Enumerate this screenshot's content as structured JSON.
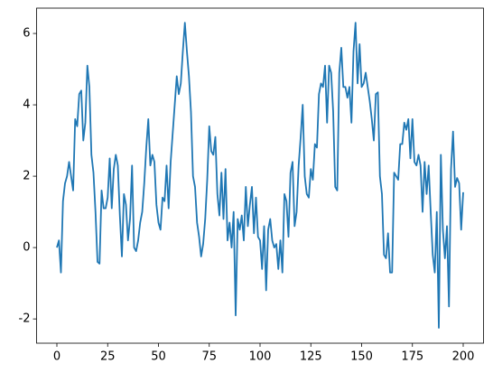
{
  "chart_data": {
    "type": "line",
    "color": "#1f77b4",
    "x": [
      0,
      1,
      2,
      3,
      4,
      5,
      6,
      7,
      8,
      9,
      10,
      11,
      12,
      13,
      14,
      15,
      16,
      17,
      18,
      19,
      20,
      21,
      22,
      23,
      24,
      25,
      26,
      27,
      28,
      29,
      30,
      31,
      32,
      33,
      34,
      35,
      36,
      37,
      38,
      39,
      40,
      41,
      42,
      43,
      44,
      45,
      46,
      47,
      48,
      49,
      50,
      51,
      52,
      53,
      54,
      55,
      56,
      57,
      58,
      59,
      60,
      61,
      62,
      63,
      64,
      65,
      66,
      67,
      68,
      69,
      70,
      71,
      72,
      73,
      74,
      75,
      76,
      77,
      78,
      79,
      80,
      81,
      82,
      83,
      84,
      85,
      86,
      87,
      88,
      89,
      90,
      91,
      92,
      93,
      94,
      95,
      96,
      97,
      98,
      99,
      100,
      101,
      102,
      103,
      104,
      105,
      106,
      107,
      108,
      109,
      110,
      111,
      112,
      113,
      114,
      115,
      116,
      117,
      118,
      119,
      120,
      121,
      122,
      123,
      124,
      125,
      126,
      127,
      128,
      129,
      130,
      131,
      132,
      133,
      134,
      135,
      136,
      137,
      138,
      139,
      140,
      141,
      142,
      143,
      144,
      145,
      146,
      147,
      148,
      149,
      150,
      151,
      152,
      153,
      154,
      155,
      156,
      157,
      158,
      159,
      160,
      161,
      162,
      163,
      164,
      165,
      166,
      167,
      168,
      169,
      170,
      171,
      172,
      173,
      174,
      175,
      176,
      177,
      178,
      179,
      180,
      181,
      182,
      183,
      184,
      185,
      186,
      187,
      188,
      189,
      190,
      191,
      192,
      193,
      194,
      195,
      196,
      197,
      198,
      199,
      200
    ],
    "values": [
      0.0,
      0.2,
      -0.7,
      1.3,
      1.8,
      2.0,
      2.4,
      2.0,
      1.6,
      3.6,
      3.4,
      4.3,
      4.4,
      3.0,
      3.5,
      5.1,
      4.5,
      2.6,
      2.1,
      1.0,
      -0.4,
      -0.45,
      1.6,
      1.1,
      1.1,
      1.4,
      2.5,
      1.1,
      2.2,
      2.6,
      2.3,
      0.9,
      -0.25,
      1.5,
      1.2,
      0.2,
      0.8,
      2.3,
      0.0,
      -0.1,
      0.2,
      0.7,
      1.0,
      1.8,
      2.8,
      3.6,
      2.3,
      2.6,
      2.4,
      1.2,
      0.7,
      0.5,
      1.4,
      1.3,
      2.3,
      1.1,
      2.4,
      3.2,
      4.0,
      4.8,
      4.3,
      4.6,
      5.5,
      6.3,
      5.5,
      4.8,
      3.8,
      2.0,
      1.7,
      0.7,
      0.3,
      -0.25,
      0.1,
      0.8,
      1.9,
      3.4,
      2.7,
      2.6,
      3.1,
      1.5,
      0.9,
      2.1,
      0.8,
      2.2,
      0.2,
      0.7,
      0.0,
      1.0,
      -1.9,
      0.8,
      0.5,
      0.9,
      0.2,
      1.7,
      0.6,
      1.2,
      1.7,
      0.4,
      1.4,
      0.3,
      0.2,
      -0.6,
      0.6,
      -1.2,
      0.5,
      0.8,
      0.2,
      0.0,
      0.1,
      -0.6,
      0.2,
      -0.7,
      1.5,
      1.3,
      0.3,
      2.1,
      2.4,
      0.6,
      1.0,
      2.3,
      3.1,
      4.0,
      2.0,
      1.5,
      1.4,
      2.2,
      1.9,
      2.9,
      2.8,
      4.3,
      4.6,
      4.5,
      5.1,
      3.5,
      5.1,
      4.9,
      3.8,
      1.7,
      1.6,
      4.9,
      5.6,
      4.5,
      4.5,
      4.2,
      4.5,
      3.5,
      5.5,
      6.3,
      4.6,
      5.7,
      4.5,
      4.6,
      4.9,
      4.5,
      4.1,
      3.6,
      3.0,
      4.3,
      4.35,
      2.0,
      1.5,
      -0.2,
      -0.3,
      0.4,
      -0.7,
      -0.7,
      2.1,
      2.0,
      1.9,
      2.9,
      2.9,
      3.5,
      3.3,
      3.6,
      2.5,
      3.6,
      2.4,
      2.3,
      2.6,
      2.3,
      1.0,
      2.4,
      1.5,
      2.3,
      1.0,
      -0.2,
      -0.7,
      1.0,
      -2.25,
      2.6,
      0.5,
      -0.3,
      0.6,
      -1.65,
      2.2,
      3.25,
      1.7,
      1.95,
      1.8,
      0.5,
      1.55
    ],
    "xlim": [
      -10,
      210
    ],
    "ylim": [
      -2.68,
      6.71
    ],
    "xticks": [
      0,
      25,
      50,
      75,
      100,
      125,
      150,
      175,
      200
    ],
    "yticks": [
      -2,
      0,
      2,
      4,
      6
    ]
  }
}
